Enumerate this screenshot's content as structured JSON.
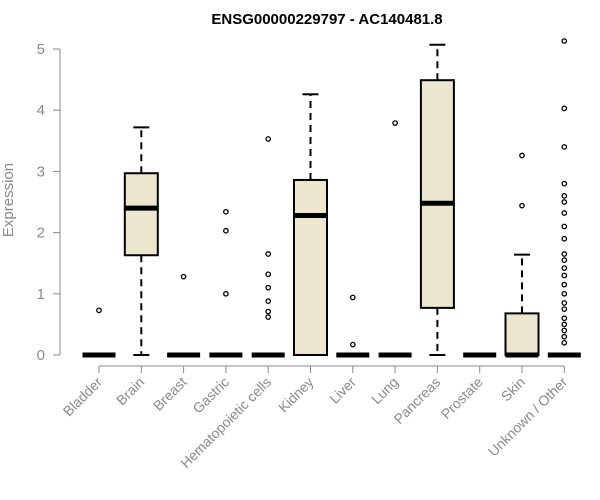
{
  "chart_data": {
    "type": "boxplot",
    "title": "ENSG00000229797 - AC140481.8",
    "xlabel": "",
    "ylabel": "Expression",
    "ylim": [
      0,
      5.2
    ],
    "yticks": [
      0,
      1,
      2,
      3,
      4,
      5
    ],
    "box_fill": "#ede6cf",
    "categories": [
      "Bladder",
      "Brain",
      "Breast",
      "Gastric",
      "Hematopoietic cells",
      "Kidney",
      "Liver",
      "Lung",
      "Pancreas",
      "Prostate",
      "Skin",
      "Unknown / Other"
    ],
    "boxes": [
      {
        "category": "Bladder",
        "min": 0,
        "q1": 0,
        "median": 0,
        "q3": 0,
        "max": 0,
        "outliers": [
          0.73
        ]
      },
      {
        "category": "Brain",
        "min": 0,
        "q1": 1.63,
        "median": 2.4,
        "q3": 2.97,
        "max": 3.72,
        "outliers": []
      },
      {
        "category": "Breast",
        "min": 0,
        "q1": 0,
        "median": 0,
        "q3": 0,
        "max": 0,
        "outliers": [
          1.28
        ]
      },
      {
        "category": "Gastric",
        "min": 0,
        "q1": 0,
        "median": 0,
        "q3": 0,
        "max": 0,
        "outliers": [
          1.0,
          2.03,
          2.34
        ]
      },
      {
        "category": "Hematopoietic cells",
        "min": 0,
        "q1": 0,
        "median": 0,
        "q3": 0,
        "max": 0,
        "outliers": [
          0.62,
          0.71,
          0.88,
          1.1,
          1.32,
          1.65,
          3.53
        ]
      },
      {
        "category": "Kidney",
        "min": 0,
        "q1": 0,
        "median": 2.28,
        "q3": 2.86,
        "max": 4.26,
        "outliers": []
      },
      {
        "category": "Liver",
        "min": 0,
        "q1": 0,
        "median": 0,
        "q3": 0,
        "max": 0,
        "outliers": [
          0.17,
          0.94
        ]
      },
      {
        "category": "Lung",
        "min": 0,
        "q1": 0,
        "median": 0,
        "q3": 0,
        "max": 0,
        "outliers": [
          3.79
        ]
      },
      {
        "category": "Pancreas",
        "min": 0,
        "q1": 0.77,
        "median": 2.48,
        "q3": 4.49,
        "max": 5.07,
        "outliers": []
      },
      {
        "category": "Prostate",
        "min": 0,
        "q1": 0,
        "median": 0,
        "q3": 0,
        "max": 0,
        "outliers": []
      },
      {
        "category": "Skin",
        "min": 0,
        "q1": 0,
        "median": 0,
        "q3": 0.68,
        "max": 1.64,
        "outliers": [
          2.44,
          3.26
        ]
      },
      {
        "category": "Unknown / Other",
        "min": 0,
        "q1": 0,
        "median": 0,
        "q3": 0,
        "max": 0,
        "outliers": [
          0.2,
          0.3,
          0.4,
          0.5,
          0.6,
          0.75,
          0.85,
          1.0,
          1.15,
          1.3,
          1.42,
          1.55,
          1.65,
          1.9,
          2.1,
          2.32,
          2.5,
          2.6,
          2.8,
          3.4,
          4.03,
          5.13
        ]
      }
    ]
  }
}
